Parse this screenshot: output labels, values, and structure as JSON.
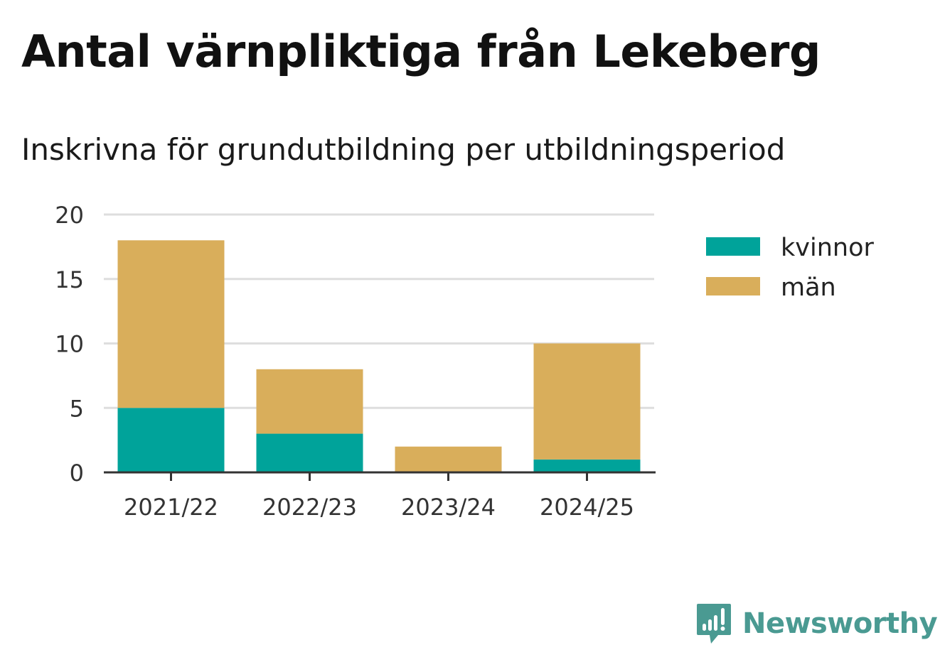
{
  "chart_data": {
    "type": "bar",
    "stacked": true,
    "title": "Antal värnpliktiga från Lekeberg",
    "subtitle": "Inskrivna för grundutbildning per utbildningsperiod",
    "categories": [
      "2021/22",
      "2022/23",
      "2023/24",
      "2024/25"
    ],
    "series": [
      {
        "name": "kvinnor",
        "color": "#00a39a",
        "values": [
          5,
          3,
          0,
          1
        ]
      },
      {
        "name": "män",
        "color": "#d9ae5b",
        "values": [
          13,
          5,
          2,
          9
        ]
      }
    ],
    "ylim": [
      0,
      20
    ],
    "yticks": [
      0,
      5,
      10,
      15,
      20
    ],
    "ytick_labels": [
      "0",
      "5",
      "10",
      "15",
      "20"
    ],
    "xlabel": "",
    "ylabel": "",
    "grid": true,
    "legend_position": "right"
  },
  "branding": {
    "name": "Newsworthy",
    "color": "#4a9a92"
  }
}
